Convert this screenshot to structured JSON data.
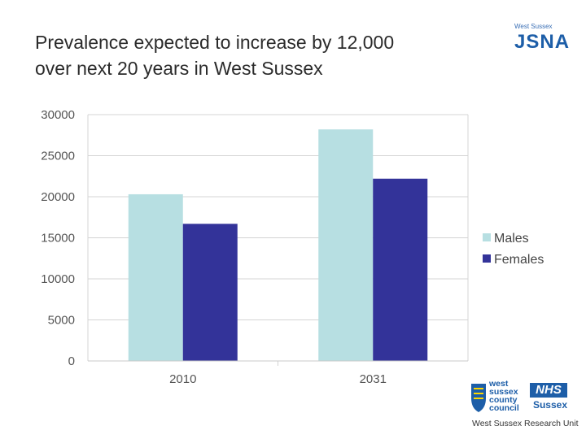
{
  "slide": {
    "title_line1": "Prevalence expected to increase by 12,000",
    "title_line2": "over next 20 years in West Sussex"
  },
  "logos": {
    "jsna_small": "West Sussex",
    "jsna_big": "JSNA",
    "council_line1": "west",
    "council_line2": "sussex",
    "council_line3": "county",
    "council_line4": "council",
    "nhs_mark": "NHS",
    "nhs_region": "Sussex",
    "research_unit": "West Sussex Research Unit"
  },
  "colors": {
    "males": "#b7dfe2",
    "females": "#333399",
    "grid": "#d4d4d4",
    "brand_blue": "#1d5ea8"
  },
  "chart_data": {
    "type": "bar",
    "categories": [
      "2010",
      "2031"
    ],
    "series": [
      {
        "name": "Males",
        "values": [
          20300,
          28200
        ]
      },
      {
        "name": "Females",
        "values": [
          16700,
          22200
        ]
      }
    ],
    "ylim": [
      0,
      30000
    ],
    "yticks": [
      0,
      5000,
      10000,
      15000,
      20000,
      25000,
      30000
    ],
    "grid": true,
    "legend_position": "right"
  }
}
